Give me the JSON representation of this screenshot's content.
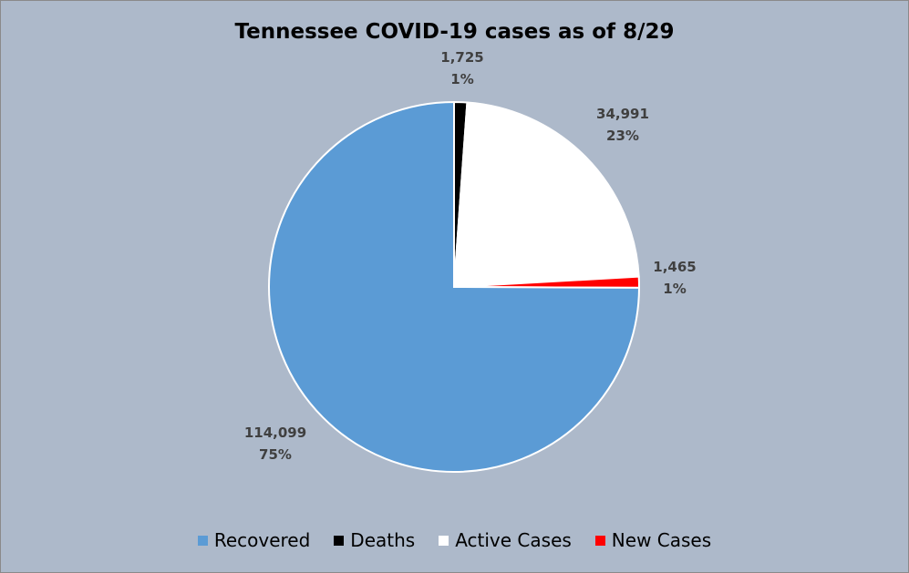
{
  "chart_data": {
    "type": "pie",
    "title": "Tennessee COVID-19 cases as of 8/29",
    "start_angle_deg": 0,
    "direction": "clockwise",
    "legend_position": "bottom",
    "slices": [
      {
        "name": "Deaths",
        "value": 1725,
        "label": "1,725",
        "percent": "1%",
        "color": "#000000"
      },
      {
        "name": "Active Cases",
        "value": 34991,
        "label": "34,991",
        "percent": "23%",
        "color": "#ffffff"
      },
      {
        "name": "New Cases",
        "value": 1465,
        "label": "1,465",
        "percent": "1%",
        "color": "#ff0000"
      },
      {
        "name": "Recovered",
        "value": 114099,
        "label": "114,099",
        "percent": "75%",
        "color": "#5b9bd5"
      }
    ],
    "legend": [
      {
        "name": "Recovered",
        "color": "#5b9bd5"
      },
      {
        "name": "Deaths",
        "color": "#000000"
      },
      {
        "name": "Active Cases",
        "color": "#ffffff"
      },
      {
        "name": "New Cases",
        "color": "#ff0000"
      }
    ]
  }
}
